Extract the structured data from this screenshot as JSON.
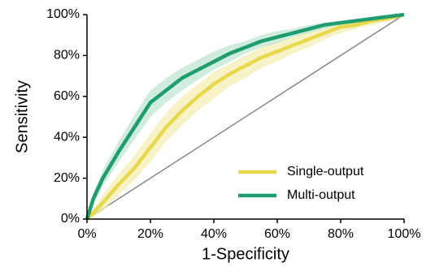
{
  "chart_data": {
    "type": "line",
    "x_label": "1-Specificity",
    "y_label": "Sensitivity",
    "x": [
      0,
      2,
      5,
      10,
      15,
      20,
      25,
      30,
      35,
      40,
      45,
      50,
      55,
      60,
      65,
      70,
      75,
      80,
      85,
      90,
      95,
      100
    ],
    "series": [
      {
        "name": "Single-output",
        "color": "#e8d84e",
        "band_color": "#f6efb4",
        "values": [
          0,
          3,
          8,
          17,
          25,
          35,
          45,
          53,
          60,
          66,
          71,
          75,
          79,
          82,
          85,
          88,
          91,
          94,
          95,
          97,
          98,
          100
        ],
        "lower": [
          0,
          1,
          4,
          12,
          19,
          28,
          38,
          46,
          53,
          59,
          65,
          69,
          74,
          77,
          81,
          84,
          88,
          91,
          93,
          95,
          97,
          100
        ],
        "upper": [
          0,
          5,
          12,
          22,
          31,
          42,
          52,
          60,
          66,
          72,
          76,
          80,
          84,
          87,
          89,
          92,
          94,
          96,
          97,
          98,
          99,
          100
        ]
      },
      {
        "name": "Multi-output",
        "color": "#1f9d6f",
        "band_color": "#bfe6d3",
        "values": [
          0,
          10,
          20,
          33,
          45,
          57,
          63,
          69,
          73,
          77,
          81,
          84,
          87,
          89,
          91,
          93,
          95,
          96,
          97,
          98,
          99,
          100
        ],
        "lower": [
          0,
          7,
          16,
          28,
          39,
          50,
          57,
          63,
          68,
          73,
          77,
          81,
          84,
          86,
          89,
          91,
          93,
          95,
          96,
          97,
          99,
          100
        ],
        "upper": [
          0,
          13,
          24,
          38,
          51,
          63,
          69,
          74,
          78,
          82,
          85,
          87,
          90,
          92,
          93,
          95,
          96,
          97,
          98,
          99,
          100,
          100
        ]
      }
    ],
    "xlim": [
      0,
      100
    ],
    "ylim": [
      0,
      100
    ],
    "xticks": [
      {
        "value": 0,
        "label": "0%"
      },
      {
        "value": 20,
        "label": "20%"
      },
      {
        "value": 40,
        "label": "40%"
      },
      {
        "value": 60,
        "label": "60%"
      },
      {
        "value": 80,
        "label": "80%"
      },
      {
        "value": 100,
        "label": "100%"
      }
    ],
    "yticks": [
      {
        "value": 0,
        "label": "0%"
      },
      {
        "value": 20,
        "label": "20%"
      },
      {
        "value": 40,
        "label": "40%"
      },
      {
        "value": 60,
        "label": "60%"
      },
      {
        "value": 80,
        "label": "80%"
      },
      {
        "value": 100,
        "label": "100%"
      }
    ],
    "grid": false,
    "legend": "lower right"
  }
}
